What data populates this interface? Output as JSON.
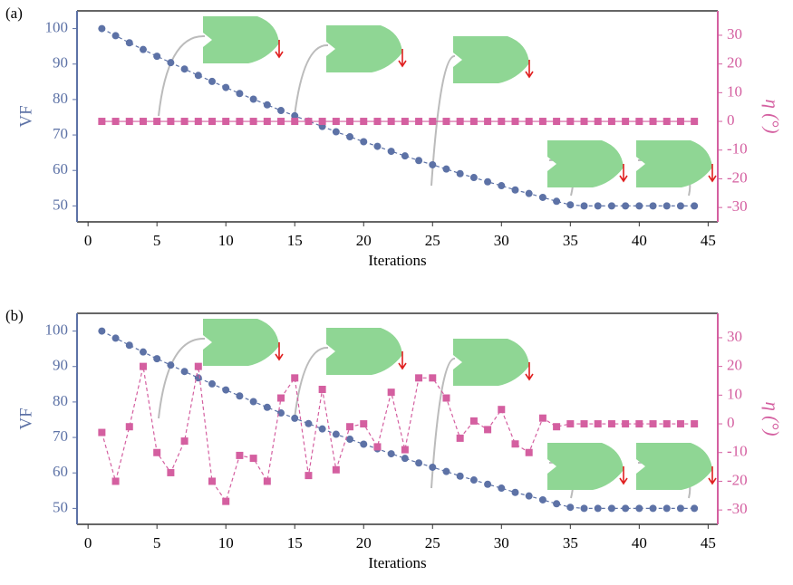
{
  "chart_data": [
    {
      "type": "line",
      "label": "(a)",
      "xlabel": "Iterations",
      "ylabel": "VF",
      "y2label": "η (°)",
      "x": [
        1,
        2,
        3,
        4,
        5,
        6,
        7,
        8,
        9,
        10,
        11,
        12,
        13,
        14,
        15,
        16,
        17,
        18,
        19,
        20,
        21,
        22,
        23,
        24,
        25,
        26,
        27,
        28,
        29,
        30,
        31,
        32,
        33,
        34,
        35,
        36,
        37,
        38,
        39,
        40,
        41,
        42,
        43,
        44
      ],
      "xlim": [
        -0.8,
        45.7
      ],
      "xticks": [
        0,
        5,
        10,
        15,
        20,
        25,
        30,
        35,
        40,
        45
      ],
      "ylim": [
        45.5,
        105
      ],
      "yticks": [
        50,
        60,
        70,
        80,
        90,
        100
      ],
      "y2lim": [
        -35,
        38.5
      ],
      "y2ticks": [
        -30,
        -20,
        -10,
        0,
        10,
        20,
        30
      ],
      "series": [
        {
          "color": "#5d72a6",
          "marker": "circle",
          "linestyle": "dashed",
          "values": [
            100,
            98,
            96,
            94.1,
            92.2,
            90.4,
            88.6,
            86.8,
            85.1,
            83.4,
            81.7,
            80.1,
            78.5,
            76.9,
            75.4,
            73.9,
            72.4,
            70.9,
            69.5,
            68.1,
            66.8,
            65.4,
            64.1,
            62.8,
            61.6,
            60.4,
            59.1,
            58,
            56.8,
            55.7,
            54.5,
            53.5,
            52.4,
            51.3,
            50.3,
            50,
            50,
            50,
            50,
            50,
            50,
            50,
            50,
            50
          ]
        },
        {
          "color": "#d45fa0",
          "marker": "square",
          "linestyle": "solid",
          "axis": "y2",
          "values": [
            0,
            0,
            0,
            0,
            0,
            0,
            0,
            0,
            0,
            0,
            0,
            0,
            0,
            0,
            0,
            0,
            0,
            0,
            0,
            0,
            0,
            0,
            0,
            0,
            0,
            0,
            0,
            0,
            0,
            0,
            0,
            0,
            0,
            0,
            0,
            0,
            0,
            0,
            0,
            0,
            0,
            0,
            0,
            0
          ]
        }
      ]
    },
    {
      "type": "line",
      "label": "(b)",
      "xlabel": "Iterations",
      "ylabel": "VF",
      "y2label": "η (°)",
      "x": [
        1,
        2,
        3,
        4,
        5,
        6,
        7,
        8,
        9,
        10,
        11,
        12,
        13,
        14,
        15,
        16,
        17,
        18,
        19,
        20,
        21,
        22,
        23,
        24,
        25,
        26,
        27,
        28,
        29,
        30,
        31,
        32,
        33,
        34,
        35,
        36,
        37,
        38,
        39,
        40,
        41,
        42,
        43,
        44
      ],
      "xlim": [
        -0.8,
        45.7
      ],
      "xticks": [
        0,
        5,
        10,
        15,
        20,
        25,
        30,
        35,
        40,
        45
      ],
      "ylim": [
        45.5,
        105
      ],
      "yticks": [
        50,
        60,
        70,
        80,
        90,
        100
      ],
      "y2lim": [
        -35,
        38.5
      ],
      "y2ticks": [
        -30,
        -20,
        -10,
        0,
        10,
        20,
        30
      ],
      "series": [
        {
          "color": "#5d72a6",
          "marker": "circle",
          "linestyle": "dashed",
          "values": [
            100,
            98,
            96,
            94.1,
            92.2,
            90.4,
            88.6,
            86.8,
            85.1,
            83.4,
            81.7,
            80.1,
            78.5,
            76.9,
            75.4,
            73.9,
            72.4,
            70.9,
            69.5,
            68.1,
            66.8,
            65.4,
            64.1,
            62.8,
            61.6,
            60.4,
            59.1,
            58,
            56.8,
            55.7,
            54.5,
            53.5,
            52.4,
            51.3,
            50.3,
            50,
            50,
            50,
            50,
            50,
            50,
            50,
            50,
            50
          ]
        },
        {
          "color": "#d45fa0",
          "marker": "square",
          "linestyle": "dashed",
          "axis": "y2",
          "values": [
            -3,
            -20,
            -1,
            20,
            -10,
            -17,
            -6,
            20,
            -20,
            -27,
            -11,
            -12,
            -20,
            9,
            16,
            -18,
            12,
            -16,
            -1,
            0,
            -8,
            11,
            -9,
            16,
            16,
            9,
            -5,
            1,
            -2,
            5,
            -7,
            -10,
            2,
            -1,
            0,
            0,
            0,
            0,
            0,
            0,
            0,
            0,
            0,
            0
          ]
        }
      ]
    }
  ]
}
